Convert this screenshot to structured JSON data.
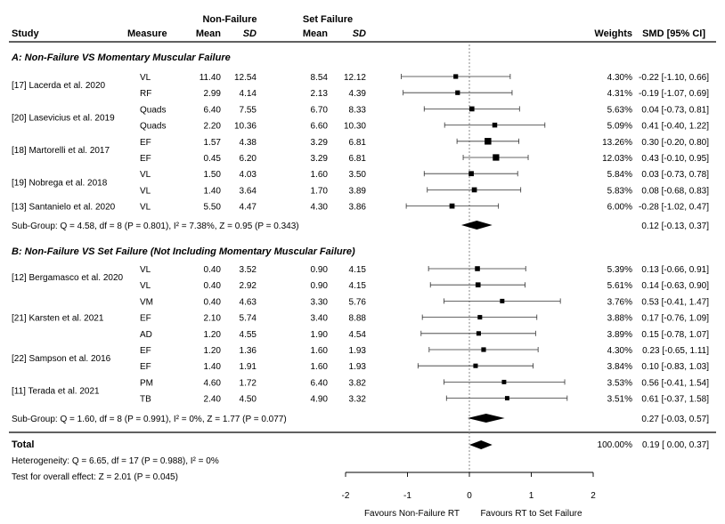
{
  "chart_data": {
    "type": "forest",
    "header": {
      "group_nonfailure": "Non-Failure",
      "group_setfailure": "Set Failure",
      "study": "Study",
      "measure": "Measure",
      "mean": "Mean",
      "sd": "SD",
      "weights": "Weights",
      "smd": "SMD [95% CI]"
    },
    "xaxis": {
      "min": -2,
      "max": 2,
      "ticks": [
        "-2",
        "-1",
        "0",
        "1",
        "2"
      ],
      "ref_line": 0
    },
    "favours_left": "Favours Non-Failure RT",
    "favours_right": "Favours RT to Set Failure",
    "groups": [
      {
        "title": "A: Non-Failure VS Momentary Muscular Failure",
        "studies": [
          {
            "label": "[17] Lacerda et al. 2020",
            "rows": [
              0,
              1
            ]
          },
          {
            "label": "[20] Lasevicius et al. 2019",
            "rows": [
              2,
              3
            ]
          },
          {
            "label": "[18] Martorelli et al. 2017",
            "rows": [
              4,
              5
            ]
          },
          {
            "label": "[19] Nobrega et al. 2018",
            "rows": [
              6,
              7
            ]
          },
          {
            "label": "[13] Santanielo et al. 2020",
            "rows": [
              8
            ]
          }
        ],
        "rows": [
          {
            "measure": "VL",
            "nf_mean": "11.40",
            "nf_sd": "12.54",
            "sf_mean": "8.54",
            "sf_sd": "12.12",
            "weight": "4.30%",
            "smd": -0.22,
            "lo": -1.1,
            "hi": 0.66,
            "ci_text": "-0.22 [-1.10, 0.66]"
          },
          {
            "measure": "RF",
            "nf_mean": "2.99",
            "nf_sd": "4.14",
            "sf_mean": "2.13",
            "sf_sd": "4.39",
            "weight": "4.31%",
            "smd": -0.19,
            "lo": -1.07,
            "hi": 0.69,
            "ci_text": "-0.19 [-1.07, 0.69]"
          },
          {
            "measure": "Quads",
            "nf_mean": "6.40",
            "nf_sd": "7.55",
            "sf_mean": "6.70",
            "sf_sd": "8.33",
            "weight": "5.63%",
            "smd": 0.04,
            "lo": -0.73,
            "hi": 0.81,
            "ci_text": "0.04 [-0.73, 0.81]"
          },
          {
            "measure": "Quads",
            "nf_mean": "2.20",
            "nf_sd": "10.36",
            "sf_mean": "6.60",
            "sf_sd": "10.30",
            "weight": "5.09%",
            "smd": 0.41,
            "lo": -0.4,
            "hi": 1.22,
            "ci_text": "0.41 [-0.40, 1.22]"
          },
          {
            "measure": "EF",
            "nf_mean": "1.57",
            "nf_sd": "4.38",
            "sf_mean": "3.29",
            "sf_sd": "6.81",
            "weight": "13.26%",
            "smd": 0.3,
            "lo": -0.2,
            "hi": 0.8,
            "ci_text": "0.30 [-0.20, 0.80]"
          },
          {
            "measure": "EF",
            "nf_mean": "0.45",
            "nf_sd": "6.20",
            "sf_mean": "3.29",
            "sf_sd": "6.81",
            "weight": "12.03%",
            "smd": 0.43,
            "lo": -0.1,
            "hi": 0.95,
            "ci_text": "0.43 [-0.10, 0.95]"
          },
          {
            "measure": "VL",
            "nf_mean": "1.50",
            "nf_sd": "4.03",
            "sf_mean": "1.60",
            "sf_sd": "3.50",
            "weight": "5.84%",
            "smd": 0.03,
            "lo": -0.73,
            "hi": 0.78,
            "ci_text": "0.03 [-0.73, 0.78]"
          },
          {
            "measure": "VL",
            "nf_mean": "1.40",
            "nf_sd": "3.64",
            "sf_mean": "1.70",
            "sf_sd": "3.89",
            "weight": "5.83%",
            "smd": 0.08,
            "lo": -0.68,
            "hi": 0.83,
            "ci_text": "0.08 [-0.68, 0.83]"
          },
          {
            "measure": "VL",
            "nf_mean": "5.50",
            "nf_sd": "4.47",
            "sf_mean": "4.30",
            "sf_sd": "3.86",
            "weight": "6.00%",
            "smd": -0.28,
            "lo": -1.02,
            "hi": 0.47,
            "ci_text": "-0.28 [-1.02, 0.47]"
          }
        ],
        "subgroup": {
          "text": "Sub-Group: Q = 4.58, df = 8 (P = 0.801), I² = 7.38%, Z = 0.95 (P = 0.343)",
          "est": 0.12,
          "lo": -0.13,
          "hi": 0.37,
          "ci_text": "0.12 [-0.13, 0.37]"
        }
      },
      {
        "title": "B: Non-Failure VS Set Failure (Not Including Momentary Muscular Failure)",
        "studies": [
          {
            "label": "[12] Bergamasco et al. 2020",
            "rows": [
              0,
              1
            ]
          },
          {
            "label": "[21] Karsten et al. 2021",
            "rows": [
              2,
              3,
              4
            ]
          },
          {
            "label": "[22] Sampson et al. 2016",
            "rows": [
              5,
              6
            ]
          },
          {
            "label": "[11] Terada et al. 2021",
            "rows": [
              7,
              8
            ]
          }
        ],
        "rows": [
          {
            "measure": "VL",
            "nf_mean": "0.40",
            "nf_sd": "3.52",
            "sf_mean": "0.90",
            "sf_sd": "4.15",
            "weight": "5.39%",
            "smd": 0.13,
            "lo": -0.66,
            "hi": 0.91,
            "ci_text": "0.13 [-0.66, 0.91]"
          },
          {
            "measure": "VL",
            "nf_mean": "0.40",
            "nf_sd": "2.92",
            "sf_mean": "0.90",
            "sf_sd": "4.15",
            "weight": "5.61%",
            "smd": 0.14,
            "lo": -0.63,
            "hi": 0.9,
            "ci_text": "0.14 [-0.63, 0.90]"
          },
          {
            "measure": "VM",
            "nf_mean": "0.40",
            "nf_sd": "4.63",
            "sf_mean": "3.30",
            "sf_sd": "5.76",
            "weight": "3.76%",
            "smd": 0.53,
            "lo": -0.41,
            "hi": 1.47,
            "ci_text": "0.53 [-0.41, 1.47]"
          },
          {
            "measure": "EF",
            "nf_mean": "2.10",
            "nf_sd": "5.74",
            "sf_mean": "3.40",
            "sf_sd": "8.88",
            "weight": "3.88%",
            "smd": 0.17,
            "lo": -0.76,
            "hi": 1.09,
            "ci_text": "0.17 [-0.76, 1.09]"
          },
          {
            "measure": "AD",
            "nf_mean": "1.20",
            "nf_sd": "4.55",
            "sf_mean": "1.90",
            "sf_sd": "4.54",
            "weight": "3.89%",
            "smd": 0.15,
            "lo": -0.78,
            "hi": 1.07,
            "ci_text": "0.15 [-0.78, 1.07]"
          },
          {
            "measure": "EF",
            "nf_mean": "1.20",
            "nf_sd": "1.36",
            "sf_mean": "1.60",
            "sf_sd": "1.93",
            "weight": "4.30%",
            "smd": 0.23,
            "lo": -0.65,
            "hi": 1.11,
            "ci_text": "0.23 [-0.65, 1.11]"
          },
          {
            "measure": "EF",
            "nf_mean": "1.40",
            "nf_sd": "1.91",
            "sf_mean": "1.60",
            "sf_sd": "1.93",
            "weight": "3.84%",
            "smd": 0.1,
            "lo": -0.83,
            "hi": 1.03,
            "ci_text": "0.10 [-0.83, 1.03]"
          },
          {
            "measure": "PM",
            "nf_mean": "4.60",
            "nf_sd": "1.72",
            "sf_mean": "6.40",
            "sf_sd": "3.82",
            "weight": "3.53%",
            "smd": 0.56,
            "lo": -0.41,
            "hi": 1.54,
            "ci_text": "0.56 [-0.41, 1.54]"
          },
          {
            "measure": "TB",
            "nf_mean": "2.40",
            "nf_sd": "4.50",
            "sf_mean": "4.90",
            "sf_sd": "3.32",
            "weight": "3.51%",
            "smd": 0.61,
            "lo": -0.37,
            "hi": 1.58,
            "ci_text": "0.61 [-0.37, 1.58]"
          }
        ],
        "subgroup": {
          "text": "Sub-Group: Q = 1.60, df = 8 (P = 0.991), I² = 0%, Z = 1.77 (P = 0.077)",
          "est": 0.27,
          "lo": -0.03,
          "hi": 0.57,
          "ci_text": "0.27 [-0.03, 0.57]"
        }
      }
    ],
    "total": {
      "label": "Total",
      "weight": "100.00%",
      "est": 0.19,
      "lo": 0.0,
      "hi": 0.37,
      "ci_text": "0.19 [ 0.00, 0.37]",
      "heterogeneity": "Heterogeneity: Q = 6.65, df = 17 (P = 0.988), I² = 0%",
      "overall_test": "Test for overall effect: Z = 2.01 (P = 0.045)"
    }
  }
}
